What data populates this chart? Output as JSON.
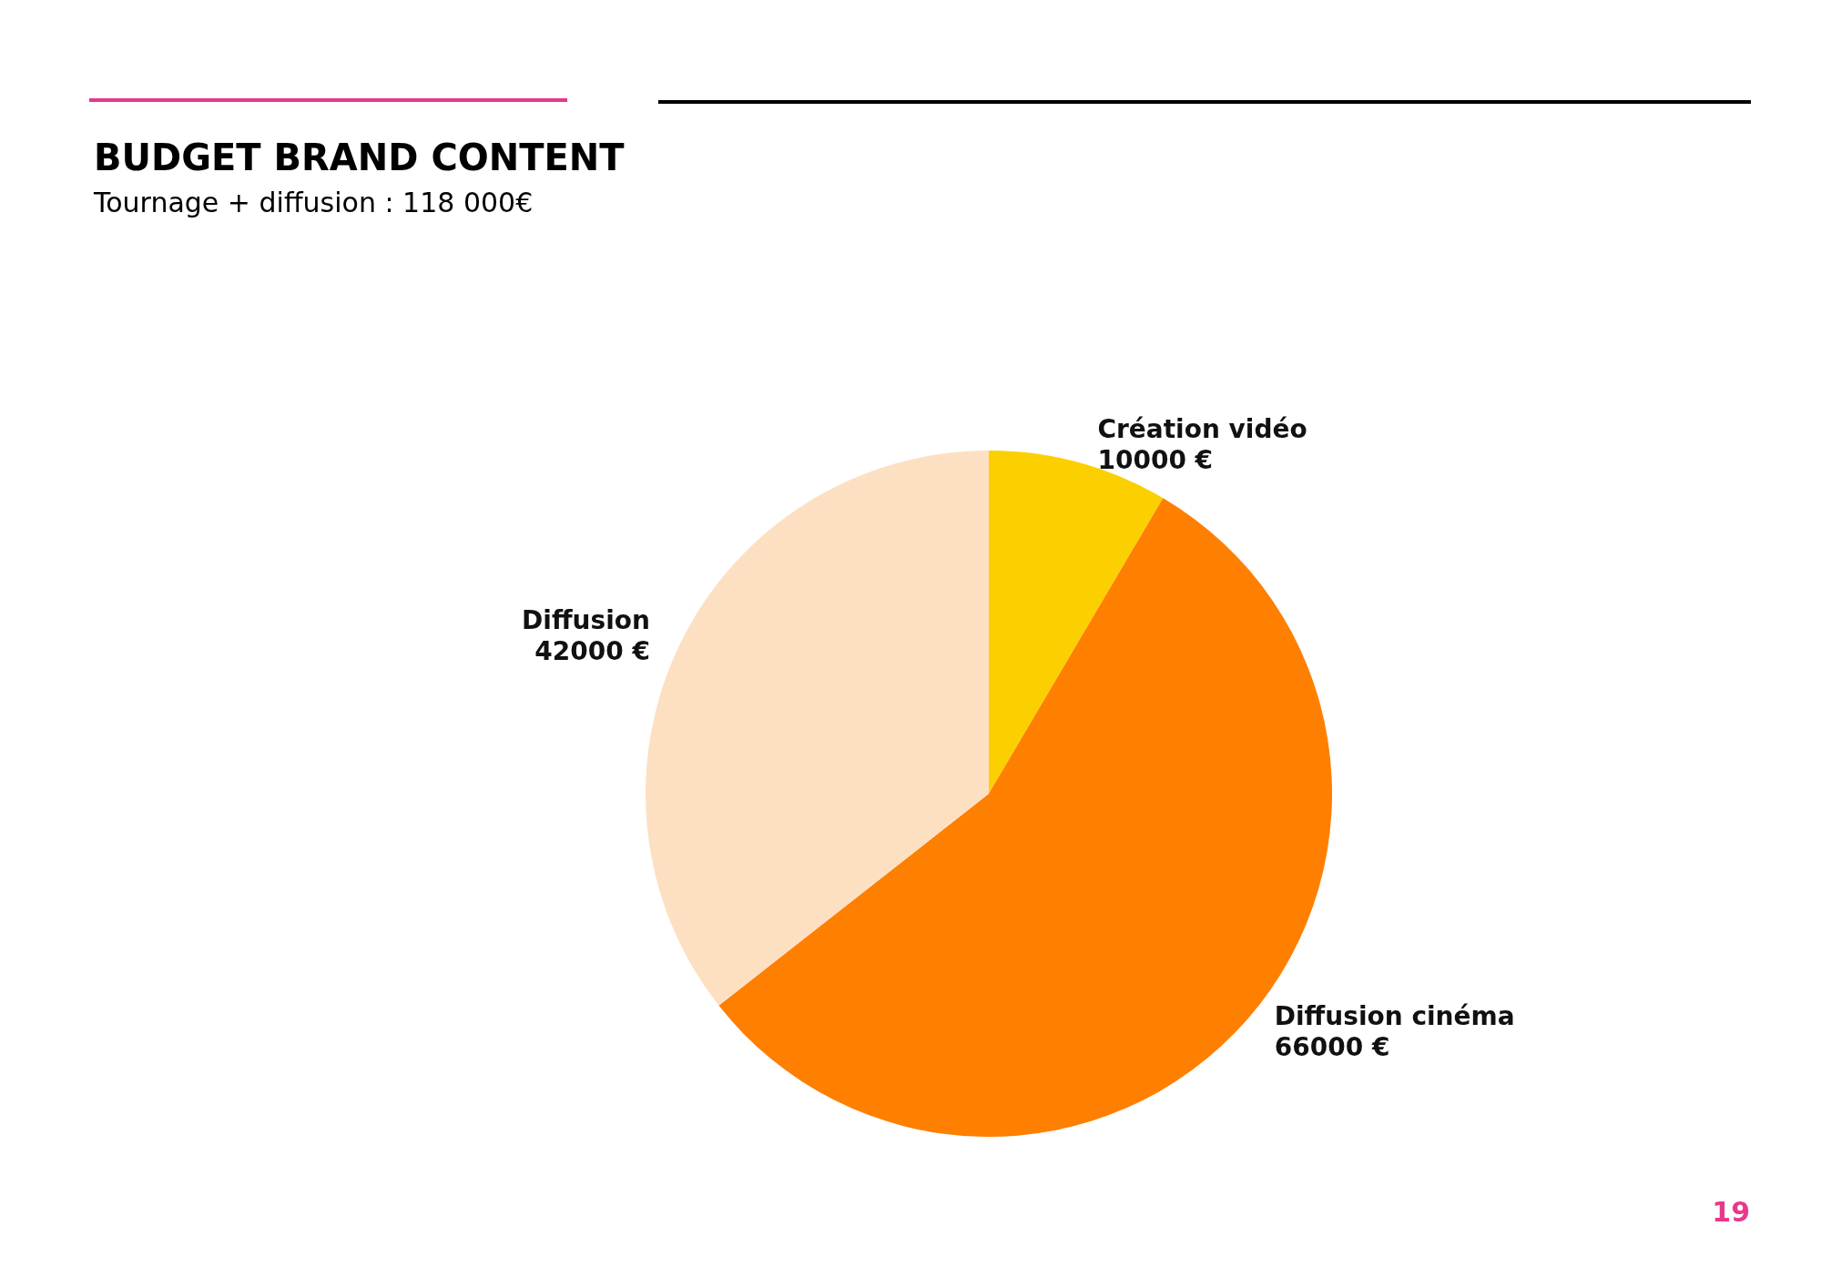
{
  "chart_data": {
    "type": "pie",
    "title": "BUDGET BRAND CONTENT",
    "subtitle": "Tournage + diffusion : 118 000€",
    "categories": [
      "Création vidéo",
      "Diffusion cinéma",
      "Diffusion"
    ],
    "values": [
      10000,
      66000,
      42000
    ],
    "value_labels": [
      "10000 €",
      "66000 €",
      "42000 €"
    ],
    "colors": [
      "#fcd000",
      "#ff7f00",
      "#fde0c2"
    ],
    "legend": false,
    "annotations": [
      "19"
    ]
  }
}
